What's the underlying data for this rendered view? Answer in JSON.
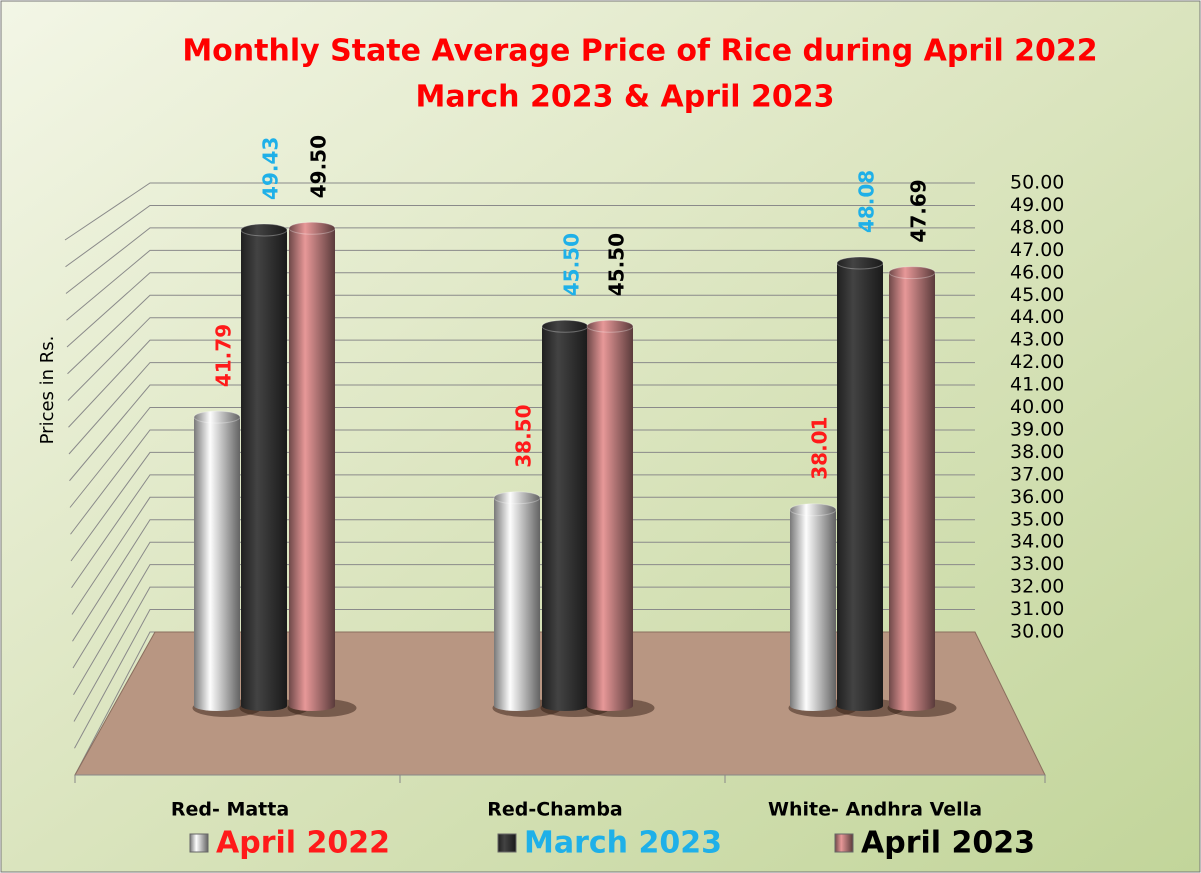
{
  "chart_data": {
    "type": "bar3d",
    "title": "Monthly State Average Price of Rice during  April 2022",
    "subtitle": "March 2023  &  April  2023",
    "title_color": "#ff0000",
    "y_label": "Prices in Rs.",
    "categories": [
      "Red- Matta",
      "Red-Chamba",
      "White- Andhra Vella"
    ],
    "series": [
      {
        "name": "April 2022",
        "color": "#dcdcdc",
        "label_color": "#ff1a1a",
        "values": [
          41.79,
          38.5,
          38.01
        ],
        "value_labels": [
          "41.79",
          "38.50",
          "38.01"
        ]
      },
      {
        "name": "March 2023",
        "color": "#3a3a3a",
        "label_color": "#1fb0e8",
        "values": [
          49.43,
          45.5,
          48.08
        ],
        "value_labels": [
          "49.43",
          "45.50",
          "48.08"
        ]
      },
      {
        "name": "April 2023",
        "color": "#c98484",
        "label_color": "#000000",
        "values": [
          49.5,
          45.5,
          47.69
        ],
        "value_labels": [
          "49.50",
          "45.50",
          "47.69"
        ]
      }
    ],
    "ylim": [
      30,
      50
    ],
    "yticks": [
      {
        "value": 30,
        "label": "30.00"
      },
      {
        "value": 31,
        "label": "31.00"
      },
      {
        "value": 32,
        "label": "32.00"
      },
      {
        "value": 33,
        "label": "33.00"
      },
      {
        "value": 34,
        "label": "34.00"
      },
      {
        "value": 35,
        "label": "35.00"
      },
      {
        "value": 36,
        "label": "36.00"
      },
      {
        "value": 37,
        "label": "37.00"
      },
      {
        "value": 38,
        "label": "38.00"
      },
      {
        "value": 39,
        "label": "39.00"
      },
      {
        "value": 40,
        "label": "40.00"
      },
      {
        "value": 41,
        "label": "41.00"
      },
      {
        "value": 42,
        "label": "42.00"
      },
      {
        "value": 43,
        "label": "43.00"
      },
      {
        "value": 44,
        "label": "44.00"
      },
      {
        "value": 45,
        "label": "45.00"
      },
      {
        "value": 46,
        "label": "46.00"
      },
      {
        "value": 47,
        "label": "47.00"
      },
      {
        "value": 48,
        "label": "48.00"
      },
      {
        "value": 49,
        "label": "49.00"
      },
      {
        "value": 50,
        "label": "50.00"
      }
    ],
    "grid": true
  }
}
